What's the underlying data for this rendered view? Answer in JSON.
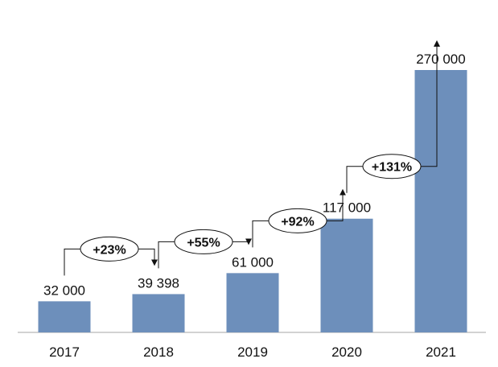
{
  "chart_data": {
    "type": "bar",
    "categories": [
      "2017",
      "2018",
      "2019",
      "2020",
      "2021"
    ],
    "values": [
      32000,
      39398,
      61000,
      117000,
      270000
    ],
    "value_labels": [
      "32 000",
      "39 398",
      "61 000",
      "117 000",
      "270 000"
    ],
    "growth_labels": [
      "+23%",
      "+55%",
      "+92%",
      "+131%"
    ],
    "title": "",
    "xlabel": "",
    "ylabel": "",
    "ylim": [
      0,
      270000
    ],
    "grid": false,
    "colors": {
      "bar": "#6d8fbb",
      "text": "#111111",
      "axis": "#a6a6a6"
    }
  }
}
